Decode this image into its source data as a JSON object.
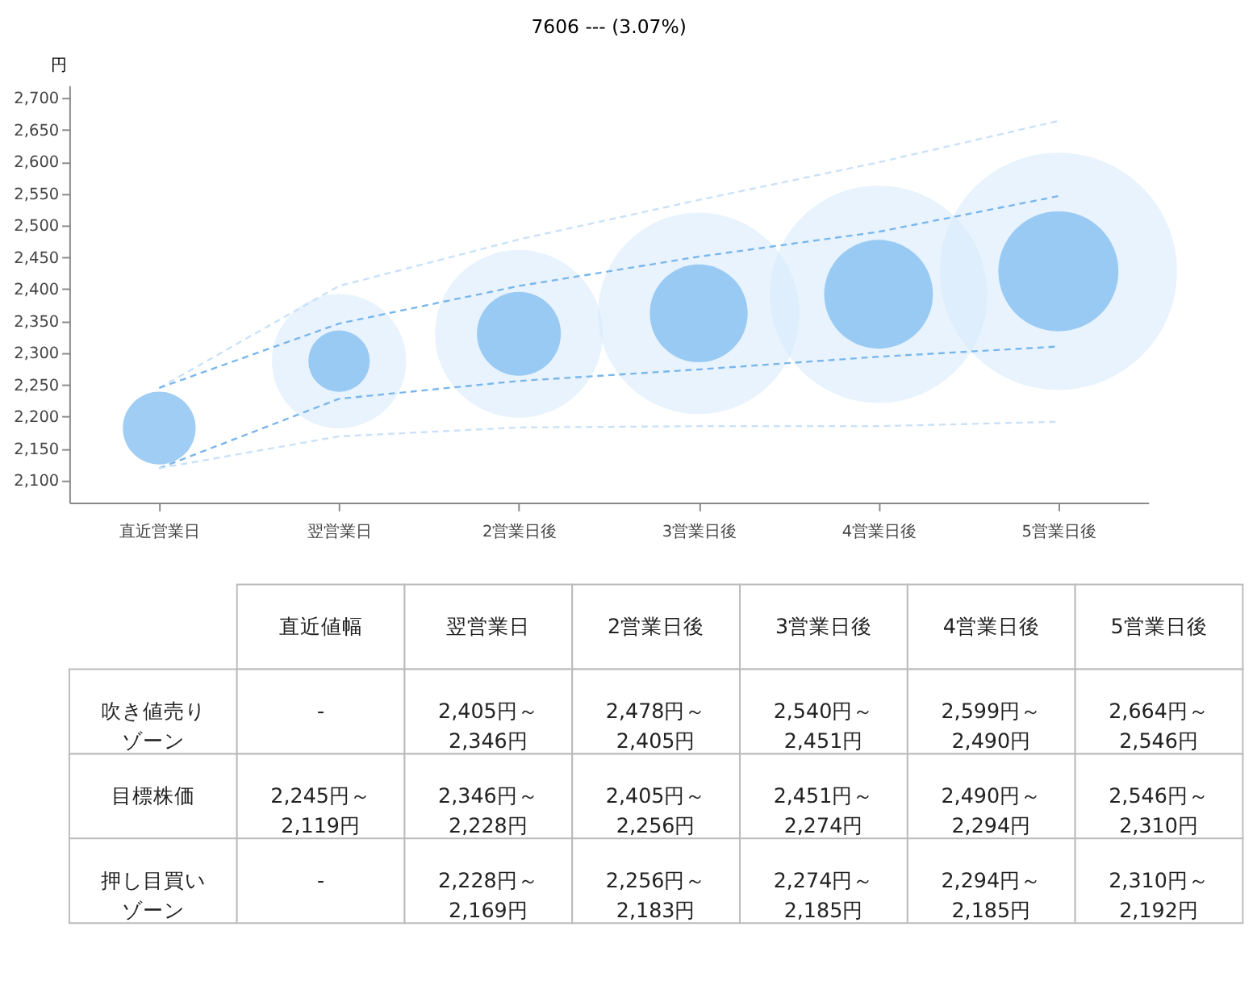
{
  "chart_data": [
    {
      "type": "bubble",
      "title": "7606 --- (3.07%)",
      "ylabel": "円",
      "categories": [
        "直近営業日",
        "翌営業日",
        "2営業日後",
        "3営業日後",
        "4営業日後",
        "5営業日後"
      ],
      "ylim": [
        2065,
        2720
      ],
      "yticks": [
        {
          "value": 2100,
          "label": "2,100"
        },
        {
          "value": 2150,
          "label": "2,150"
        },
        {
          "value": 2200,
          "label": "2,200"
        },
        {
          "value": 2250,
          "label": "2,250"
        },
        {
          "value": 2300,
          "label": "2,300"
        },
        {
          "value": 2350,
          "label": "2,350"
        },
        {
          "value": 2400,
          "label": "2,400"
        },
        {
          "value": 2450,
          "label": "2,450"
        },
        {
          "value": 2500,
          "label": "2,500"
        },
        {
          "value": 2550,
          "label": "2,550"
        },
        {
          "value": 2600,
          "label": "2,600"
        },
        {
          "value": 2650,
          "label": "2,650"
        },
        {
          "value": 2700,
          "label": "2,700"
        }
      ],
      "grid": false,
      "series": [
        {
          "type": "bubble",
          "color": "#d6e9fb",
          "values": [
            null,
            2287,
            2330,
            2362,
            2392,
            2428
          ],
          "sizes": [
            null,
            0.32,
            0.5,
            0.72,
            0.84,
            1
          ]
        },
        {
          "type": "bubble",
          "color": "#7fbcf0",
          "values": [
            2182,
            2287,
            2330,
            2362,
            2392,
            2428
          ],
          "sizes": [
            0.094,
            0.067,
            0.125,
            0.17,
            0.21,
            0.256
          ]
        },
        {
          "type": "line",
          "line_style": "dashed",
          "color": "#c9e1f8",
          "values": [
            2245,
            2405,
            2478,
            2540,
            2599,
            2664
          ]
        },
        {
          "type": "line",
          "line_style": "dashed",
          "color": "#78b6ee",
          "values": [
            2245,
            2346,
            2405,
            2451,
            2490,
            2546
          ]
        },
        {
          "type": "line",
          "line_style": "dashed",
          "color": "#78b6ee",
          "values": [
            2119,
            2228,
            2256,
            2274,
            2294,
            2310
          ]
        },
        {
          "type": "line",
          "line_style": "dashed",
          "color": "#c9e1f8",
          "values": [
            2119,
            2169,
            2183,
            2185,
            2185,
            2192
          ]
        }
      ]
    },
    {
      "type": "heatmap",
      "categories": [
        "直近値幅",
        "翌営業日",
        "2営業日後",
        "3営業日後",
        "4営業日後",
        "5営業日後"
      ],
      "y_categories": [
        "吹き値売りゾーン",
        "目標株価",
        "押し目買いゾーン"
      ],
      "cells": [
        [
          null,
          null,
          null,
          null,
          null,
          null
        ],
        [
          null,
          null,
          null,
          null,
          null,
          null
        ],
        [
          null,
          null,
          null,
          null,
          null,
          null
        ]
      ],
      "cell_labels": [
        [
          "-",
          "2,405円～\n2,346円",
          "2,478円～\n2,405円",
          "2,540円～\n2,451円",
          "2,599円～\n2,490円",
          "2,664円～\n2,546円"
        ],
        [
          "2,245円～\n2,119円",
          "2,346円～\n2,228円",
          "2,405円～\n2,256円",
          "2,451円～\n2,274円",
          "2,490円～\n2,294円",
          "2,546円～\n2,310円"
        ],
        [
          "-",
          "2,228円～\n2,169円",
          "2,256円～\n2,183円",
          "2,274円～\n2,185円",
          "2,294円～\n2,185円",
          "2,310円～\n2,192円"
        ]
      ]
    }
  ]
}
